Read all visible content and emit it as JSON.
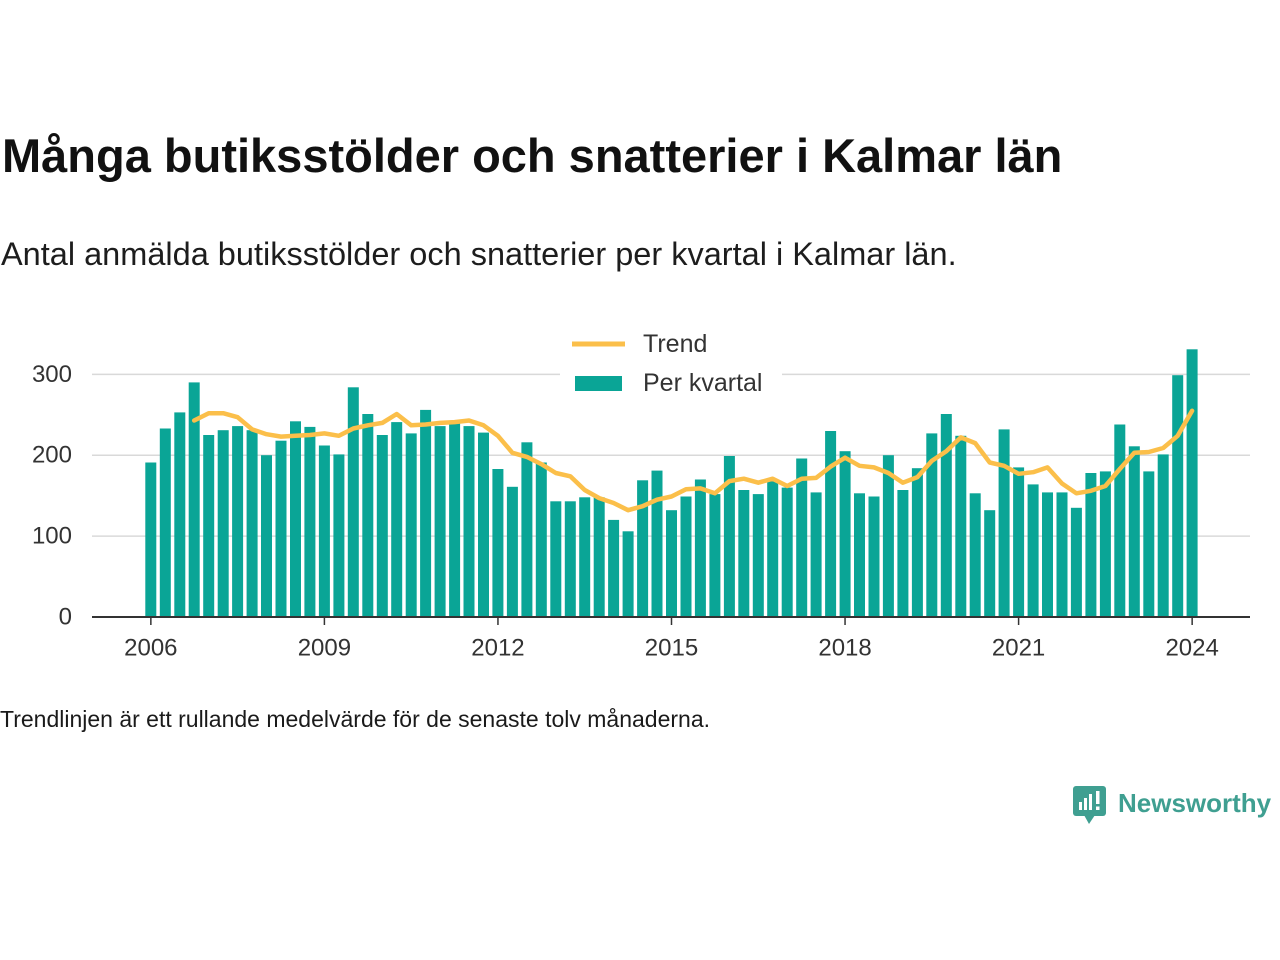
{
  "chart_data": {
    "type": "bar",
    "title": "Många butiksstölder och snatterier i Kalmar län",
    "subtitle": "Antal anmälda butiksstölder och snatterier per kvartal i Kalmar län.",
    "note": "Trendlinjen är ett rullande medelvärde för de senaste tolv månaderna.",
    "x": [
      "2006-01-01",
      "2006-04-01",
      "2006-07-01",
      "2006-10-01",
      "2007-01-01",
      "2007-04-01",
      "2007-07-01",
      "2007-10-01",
      "2008-01-01",
      "2008-04-01",
      "2008-07-01",
      "2008-10-01",
      "2009-01-01",
      "2009-04-01",
      "2009-07-01",
      "2009-10-01",
      "2010-01-01",
      "2010-04-01",
      "2010-07-01",
      "2010-10-01",
      "2011-01-01",
      "2011-04-01",
      "2011-07-01",
      "2011-10-01",
      "2012-01-01",
      "2012-04-01",
      "2012-07-01",
      "2012-10-01",
      "2013-01-01",
      "2013-04-01",
      "2013-07-01",
      "2013-10-01",
      "2014-01-01",
      "2014-04-01",
      "2014-07-01",
      "2014-10-01",
      "2015-01-01",
      "2015-04-01",
      "2015-07-01",
      "2015-10-01",
      "2016-01-01",
      "2016-04-01",
      "2016-07-01",
      "2016-10-01",
      "2017-01-01",
      "2017-04-01",
      "2017-07-01",
      "2017-10-01",
      "2018-01-01",
      "2018-04-01",
      "2018-07-01",
      "2018-10-01",
      "2019-01-01",
      "2019-04-01",
      "2019-07-01",
      "2019-10-01",
      "2020-01-01",
      "2020-04-01",
      "2020-07-01",
      "2020-10-01",
      "2021-01-01",
      "2021-04-01",
      "2021-07-01",
      "2021-10-01",
      "2022-01-01",
      "2022-04-01",
      "2022-07-01",
      "2022-10-01",
      "2023-01-01",
      "2023-04-01",
      "2023-07-01",
      "2023-10-01",
      "2024-01-01"
    ],
    "x_ticks": [
      "2006",
      "2009",
      "2012",
      "2015",
      "2018",
      "2021",
      "2024"
    ],
    "y_ticks": [
      0,
      100,
      200,
      300
    ],
    "xlim": [
      "2005-01-01",
      "2025-01-01"
    ],
    "ylim": [
      0,
      340
    ],
    "grid": true,
    "legend_position": "top-center",
    "series": [
      {
        "name": "Trend",
        "type": "line",
        "color": "#fbbf4a",
        "values": [
          null,
          null,
          null,
          243,
          252,
          252,
          247,
          232,
          226,
          223,
          224,
          225,
          227,
          224,
          233,
          237,
          240,
          251,
          237,
          238,
          240,
          241,
          243,
          237,
          224,
          203,
          198,
          189,
          178,
          174,
          157,
          147,
          141,
          132,
          137,
          145,
          149,
          158,
          159,
          153,
          168,
          171,
          166,
          171,
          162,
          171,
          172,
          186,
          197,
          187,
          185,
          178,
          166,
          173,
          193,
          205,
          222,
          215,
          191,
          187,
          177,
          179,
          185,
          165,
          153,
          156,
          162,
          183,
          203,
          204,
          209,
          224,
          255
        ]
      },
      {
        "name": "Per kvartal",
        "type": "bar",
        "color": "#0aa596",
        "values": [
          191,
          233,
          253,
          290,
          225,
          231,
          236,
          231,
          200,
          218,
          242,
          235,
          212,
          201,
          284,
          251,
          225,
          241,
          227,
          256,
          236,
          242,
          236,
          228,
          183,
          161,
          216,
          191,
          143,
          143,
          148,
          148,
          120,
          106,
          169,
          181,
          132,
          149,
          170,
          152,
          199,
          157,
          152,
          170,
          160,
          196,
          154,
          230,
          205,
          153,
          149,
          200,
          157,
          184,
          227,
          251,
          224,
          153,
          132,
          232,
          185,
          164,
          154,
          154,
          135,
          178,
          180,
          238,
          211,
          180,
          201,
          299,
          331
        ]
      }
    ]
  },
  "brand": {
    "name": "Newsworthy",
    "icon": "newsworthy-logo-icon",
    "color": "#3f9f91"
  }
}
